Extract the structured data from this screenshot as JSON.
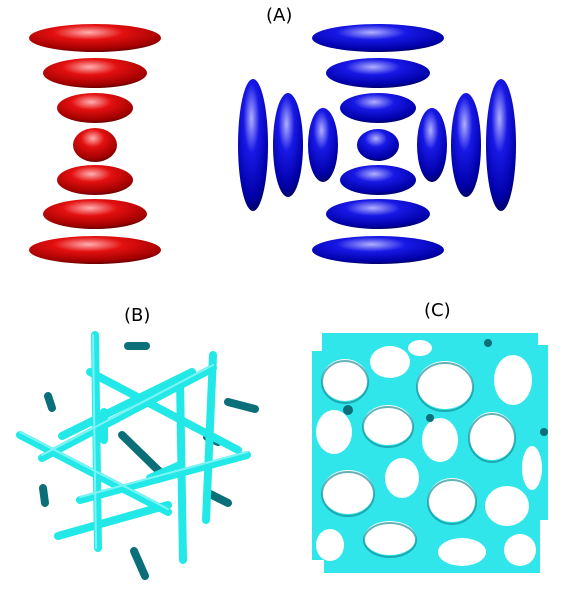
{
  "panels": {
    "a": {
      "label": "(A)"
    },
    "b": {
      "label": "(B)"
    },
    "c": {
      "label": "(C)"
    }
  },
  "colors": {
    "red_ellipsoid": "#e00000",
    "blue_ellipsoid": "#1010e0",
    "cyan_rod": "#22e8e8",
    "cyan_rod_dark": "#0a6f78",
    "network": "#30e6ea"
  }
}
